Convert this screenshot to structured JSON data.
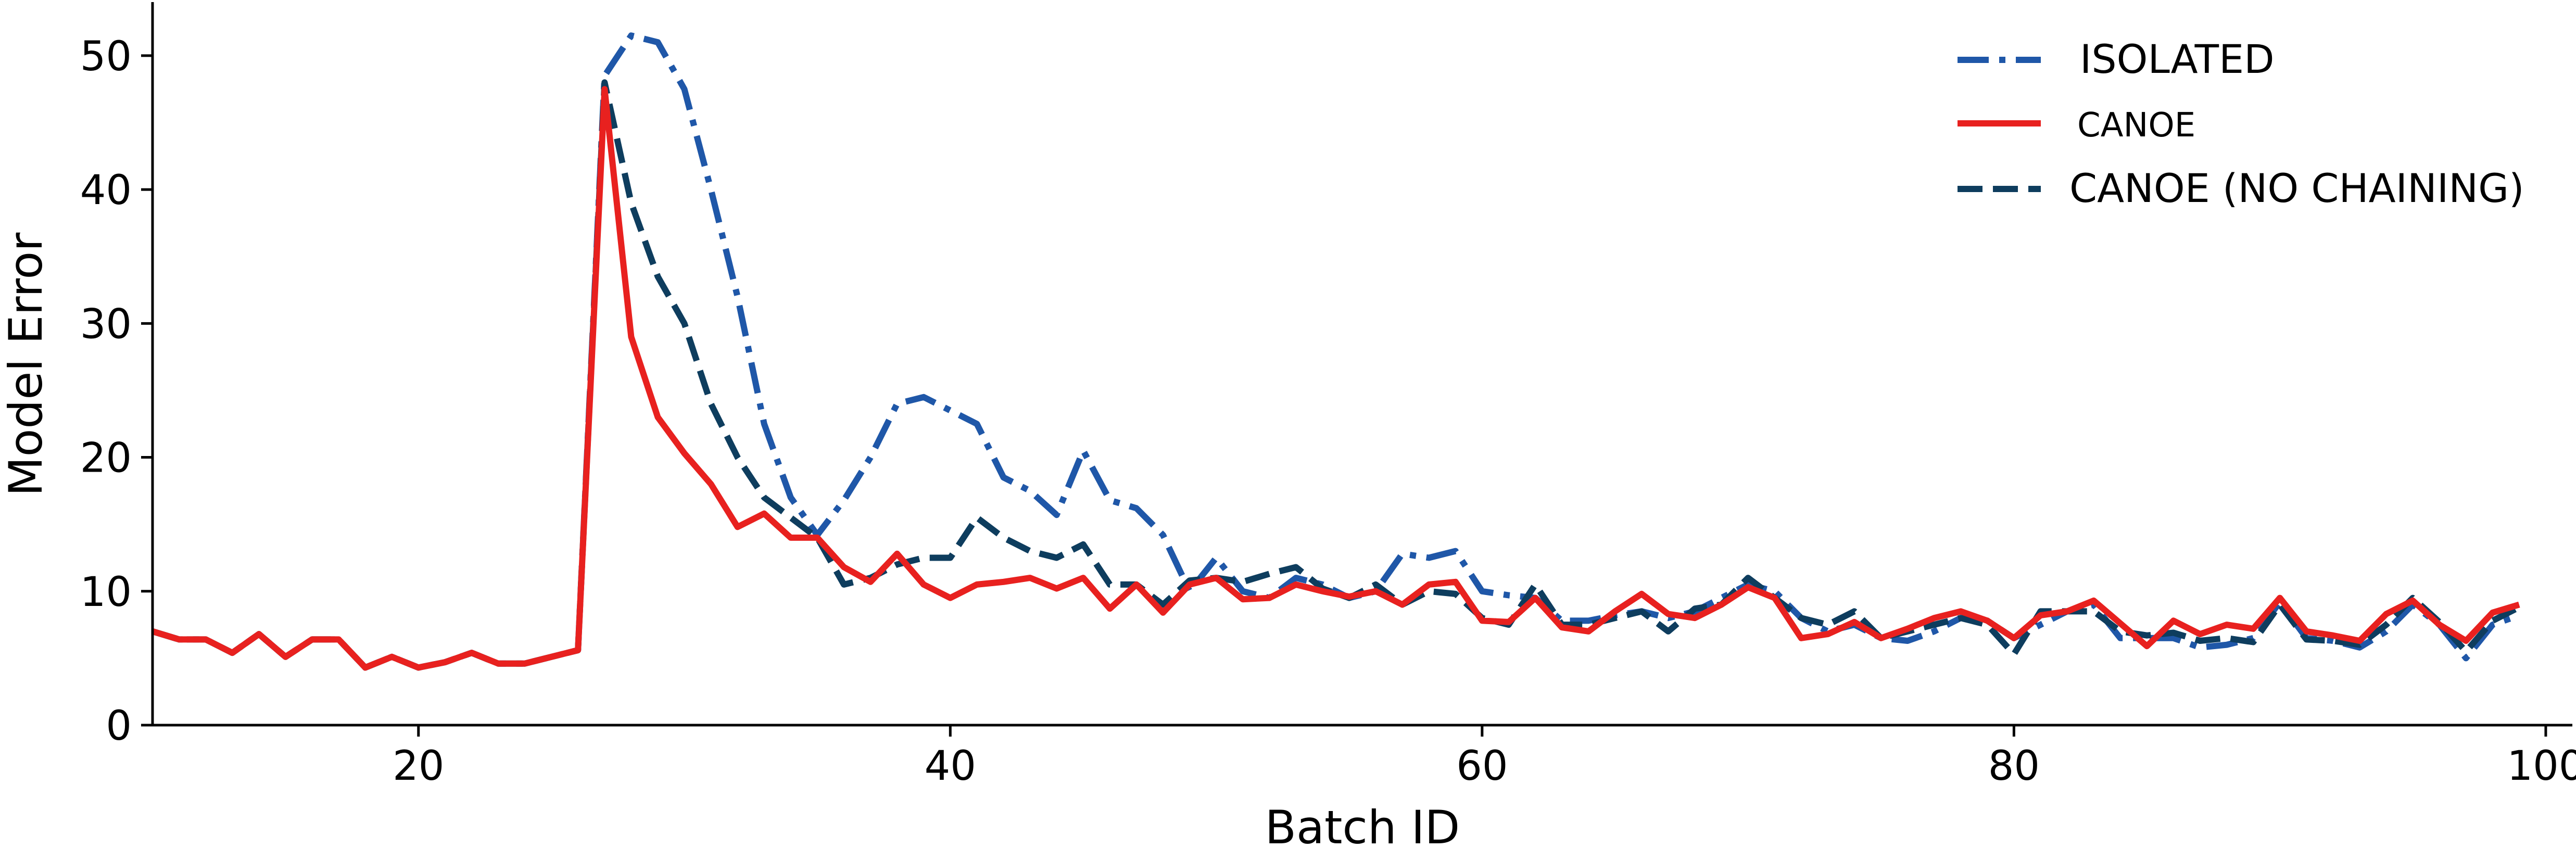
{
  "chart_data": {
    "type": "line",
    "xlabel": "Batch ID",
    "ylabel": "Model Error",
    "xlim": [
      10,
      101
    ],
    "ylim": [
      0,
      54
    ],
    "xticks": [
      20,
      40,
      60,
      80,
      100
    ],
    "yticks": [
      0,
      10,
      20,
      30,
      40,
      50
    ],
    "grid": false,
    "legend_position": "top-right",
    "x": [
      10,
      11,
      12,
      13,
      14,
      15,
      16,
      17,
      18,
      19,
      20,
      21,
      22,
      23,
      24,
      25,
      26,
      27,
      28,
      29,
      30,
      31,
      32,
      33,
      34,
      35,
      36,
      37,
      38,
      39,
      40,
      41,
      42,
      43,
      44,
      45,
      46,
      47,
      48,
      49,
      50,
      51,
      52,
      53,
      54,
      55,
      56,
      57,
      58,
      59,
      60,
      61,
      62,
      63,
      64,
      65,
      66,
      67,
      68,
      69,
      70,
      71,
      72,
      73,
      74,
      75,
      76,
      77,
      78,
      79,
      80,
      81,
      82,
      83,
      84,
      85,
      86,
      87,
      88,
      89,
      90,
      91,
      92,
      93,
      94,
      95,
      96,
      97,
      98,
      99
    ],
    "series": [
      {
        "name": "ISOLATED",
        "color": "#1f57a8",
        "dash": "dashdot",
        "values": [
          7,
          6.4,
          6.4,
          5.4,
          6.8,
          5.1,
          6.4,
          6.4,
          4.3,
          5.1,
          4.3,
          4.7,
          5.4,
          4.6,
          4.6,
          5.1,
          5.6,
          48.5,
          51.5,
          51,
          47.5,
          40,
          32,
          22.5,
          17,
          14.2,
          16.8,
          20,
          24,
          24.5,
          23.5,
          22.5,
          18.5,
          17.5,
          15.7,
          20.5,
          16.8,
          16.2,
          14.2,
          10,
          12.5,
          10,
          9.5,
          11,
          10.5,
          9.5,
          10,
          12.8,
          12.5,
          13,
          10,
          9.7,
          9.5,
          7.8,
          7.8,
          8.2,
          8.5,
          8,
          8.5,
          9.5,
          10.5,
          10,
          8,
          7,
          7.5,
          6.5,
          6.3,
          7,
          8,
          7.8,
          6.5,
          7.5,
          8.5,
          9,
          6.5,
          6.5,
          6.5,
          5.8,
          6,
          6.5,
          9.2,
          6.5,
          6.3,
          5.8,
          7,
          9,
          7.5,
          5,
          7.5,
          8.2
        ]
      },
      {
        "name": "CANOE",
        "color": "#e8211f",
        "dash": "solid",
        "values": [
          7,
          6.4,
          6.4,
          5.4,
          6.8,
          5.1,
          6.4,
          6.4,
          4.3,
          5.1,
          4.3,
          4.7,
          5.4,
          4.6,
          4.6,
          5.1,
          5.6,
          47.5,
          29,
          23,
          20.3,
          18,
          14.8,
          15.8,
          14,
          14,
          11.8,
          10.7,
          12.8,
          10.5,
          9.5,
          10.5,
          10.7,
          11,
          10.2,
          11,
          8.7,
          10.5,
          8.4,
          10.5,
          11,
          9.4,
          9.5,
          10.5,
          10,
          9.6,
          10,
          9,
          10.5,
          10.7,
          7.8,
          7.7,
          9.5,
          7.3,
          7,
          8.5,
          9.8,
          8.3,
          8,
          9,
          10.3,
          9.5,
          6.5,
          6.8,
          7.7,
          6.5,
          7.2,
          8,
          8.5,
          7.8,
          6.5,
          8.2,
          8.5,
          9.3,
          7.6,
          5.9,
          7.8,
          6.8,
          7.5,
          7.2,
          9.5,
          7,
          6.7,
          6.3,
          8.3,
          9.3,
          7.5,
          6.3,
          8.4,
          9
        ]
      },
      {
        "name": "CANOE (NO CHAINING)",
        "color": "#0e3d5e",
        "dash": "dashed",
        "values": [
          7,
          6.4,
          6.4,
          5.4,
          6.8,
          5.1,
          6.4,
          6.4,
          4.3,
          5.1,
          4.3,
          4.7,
          5.4,
          4.6,
          4.6,
          5.1,
          5.6,
          48,
          39,
          33.5,
          30,
          24,
          20,
          17,
          15.5,
          14,
          10.5,
          11,
          12,
          12.5,
          12.5,
          15.5,
          14,
          13,
          12.5,
          13.5,
          10.5,
          10.5,
          9,
          10.8,
          11,
          10.7,
          11.3,
          11.8,
          10.2,
          9.5,
          10.5,
          9,
          10,
          9.8,
          8,
          7.5,
          10.5,
          7.5,
          7.5,
          8,
          8.5,
          7,
          8.7,
          9,
          11,
          9.5,
          8,
          7.5,
          8.5,
          6.5,
          7,
          7.5,
          8,
          7.5,
          5.3,
          8.5,
          8.5,
          8.5,
          7,
          6.7,
          6.9,
          6.3,
          6.5,
          6.2,
          9,
          6.4,
          6.3,
          6,
          7.5,
          9.5,
          7.7,
          5.5,
          7.8,
          8.8
        ]
      }
    ]
  }
}
